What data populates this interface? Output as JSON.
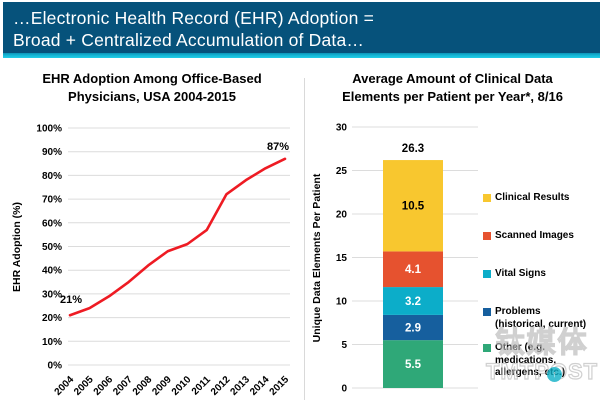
{
  "header": {
    "title_line1": "…Electronic Health Record (EHR) Adoption =",
    "title_line2": "Broad + Centralized Accumulation of Data…",
    "bg_color": "#06527b",
    "accent_color": "#14b6d4"
  },
  "watermark": {
    "cjk": "钛媒体",
    "latin": "TMTPOST",
    "badge_glyph": "↑",
    "accent_color": "#0fb0c6"
  },
  "chart_data": [
    {
      "type": "line",
      "title": "EHR Adoption Among Office-Based Physicians, USA 2004-2015",
      "title_line1": "EHR Adoption Among Office-Based",
      "title_line2": "Physicians, USA 2004-2015",
      "ylabel": "EHR Adoption (%)",
      "xlabel": "",
      "x": [
        "2004",
        "2005",
        "2006",
        "2007",
        "2008",
        "2009",
        "2010",
        "2011",
        "2012",
        "2013",
        "2014",
        "2015"
      ],
      "values": [
        21,
        24,
        29,
        35,
        42,
        48,
        51,
        57,
        72,
        78,
        83,
        87
      ],
      "ylim": [
        0,
        100
      ],
      "ytick_step": 10,
      "ytick_suffix": "%",
      "grid": true,
      "legend_position": "none",
      "line_color": "#ee1b23",
      "grid_color": "#dcdcdc",
      "annotations": [
        {
          "x": "2004",
          "label": "21%"
        },
        {
          "x": "2015",
          "label": "87%"
        }
      ]
    },
    {
      "type": "bar",
      "stacked": true,
      "title": "Average Amount of Clinical Data Elements per Patient per Year*, 8/16",
      "title_line1": "Average Amount of Clinical Data",
      "title_line2": "Elements per Patient per Year*, 8/16",
      "ylabel": "Unique Data Elements Per Patient",
      "xlabel": "",
      "ylim": [
        0,
        30
      ],
      "ytick_step": 5,
      "grid": true,
      "legend_position": "right",
      "grid_color": "#dcdcdc",
      "total_label": "26.3",
      "total_value": 26.3,
      "segments": [
        {
          "name": "Clinical Results",
          "legend_lines": [
            "Clinical Results"
          ],
          "value": 10.5,
          "color": "#f8c72f",
          "label_color": "#000000"
        },
        {
          "name": "Scanned Images",
          "legend_lines": [
            "Scanned Images"
          ],
          "value": 4.1,
          "color": "#e6522f",
          "label_color": "#ffffff"
        },
        {
          "name": "Vital Signs",
          "legend_lines": [
            "Vital Signs"
          ],
          "value": 3.2,
          "color": "#0cadc9",
          "label_color": "#ffffff"
        },
        {
          "name": "Problems (historical, current)",
          "legend_lines": [
            "Problems",
            "(historical, current)"
          ],
          "value": 2.9,
          "color": "#165f9e",
          "label_color": "#ffffff"
        },
        {
          "name": "Other (e.g. medications, allergens, etc.)",
          "legend_lines": [
            "Other (e.g.",
            "medications,",
            "allergens, etc.)"
          ],
          "value": 5.5,
          "color": "#2fa878",
          "label_color": "#ffffff"
        }
      ]
    }
  ]
}
